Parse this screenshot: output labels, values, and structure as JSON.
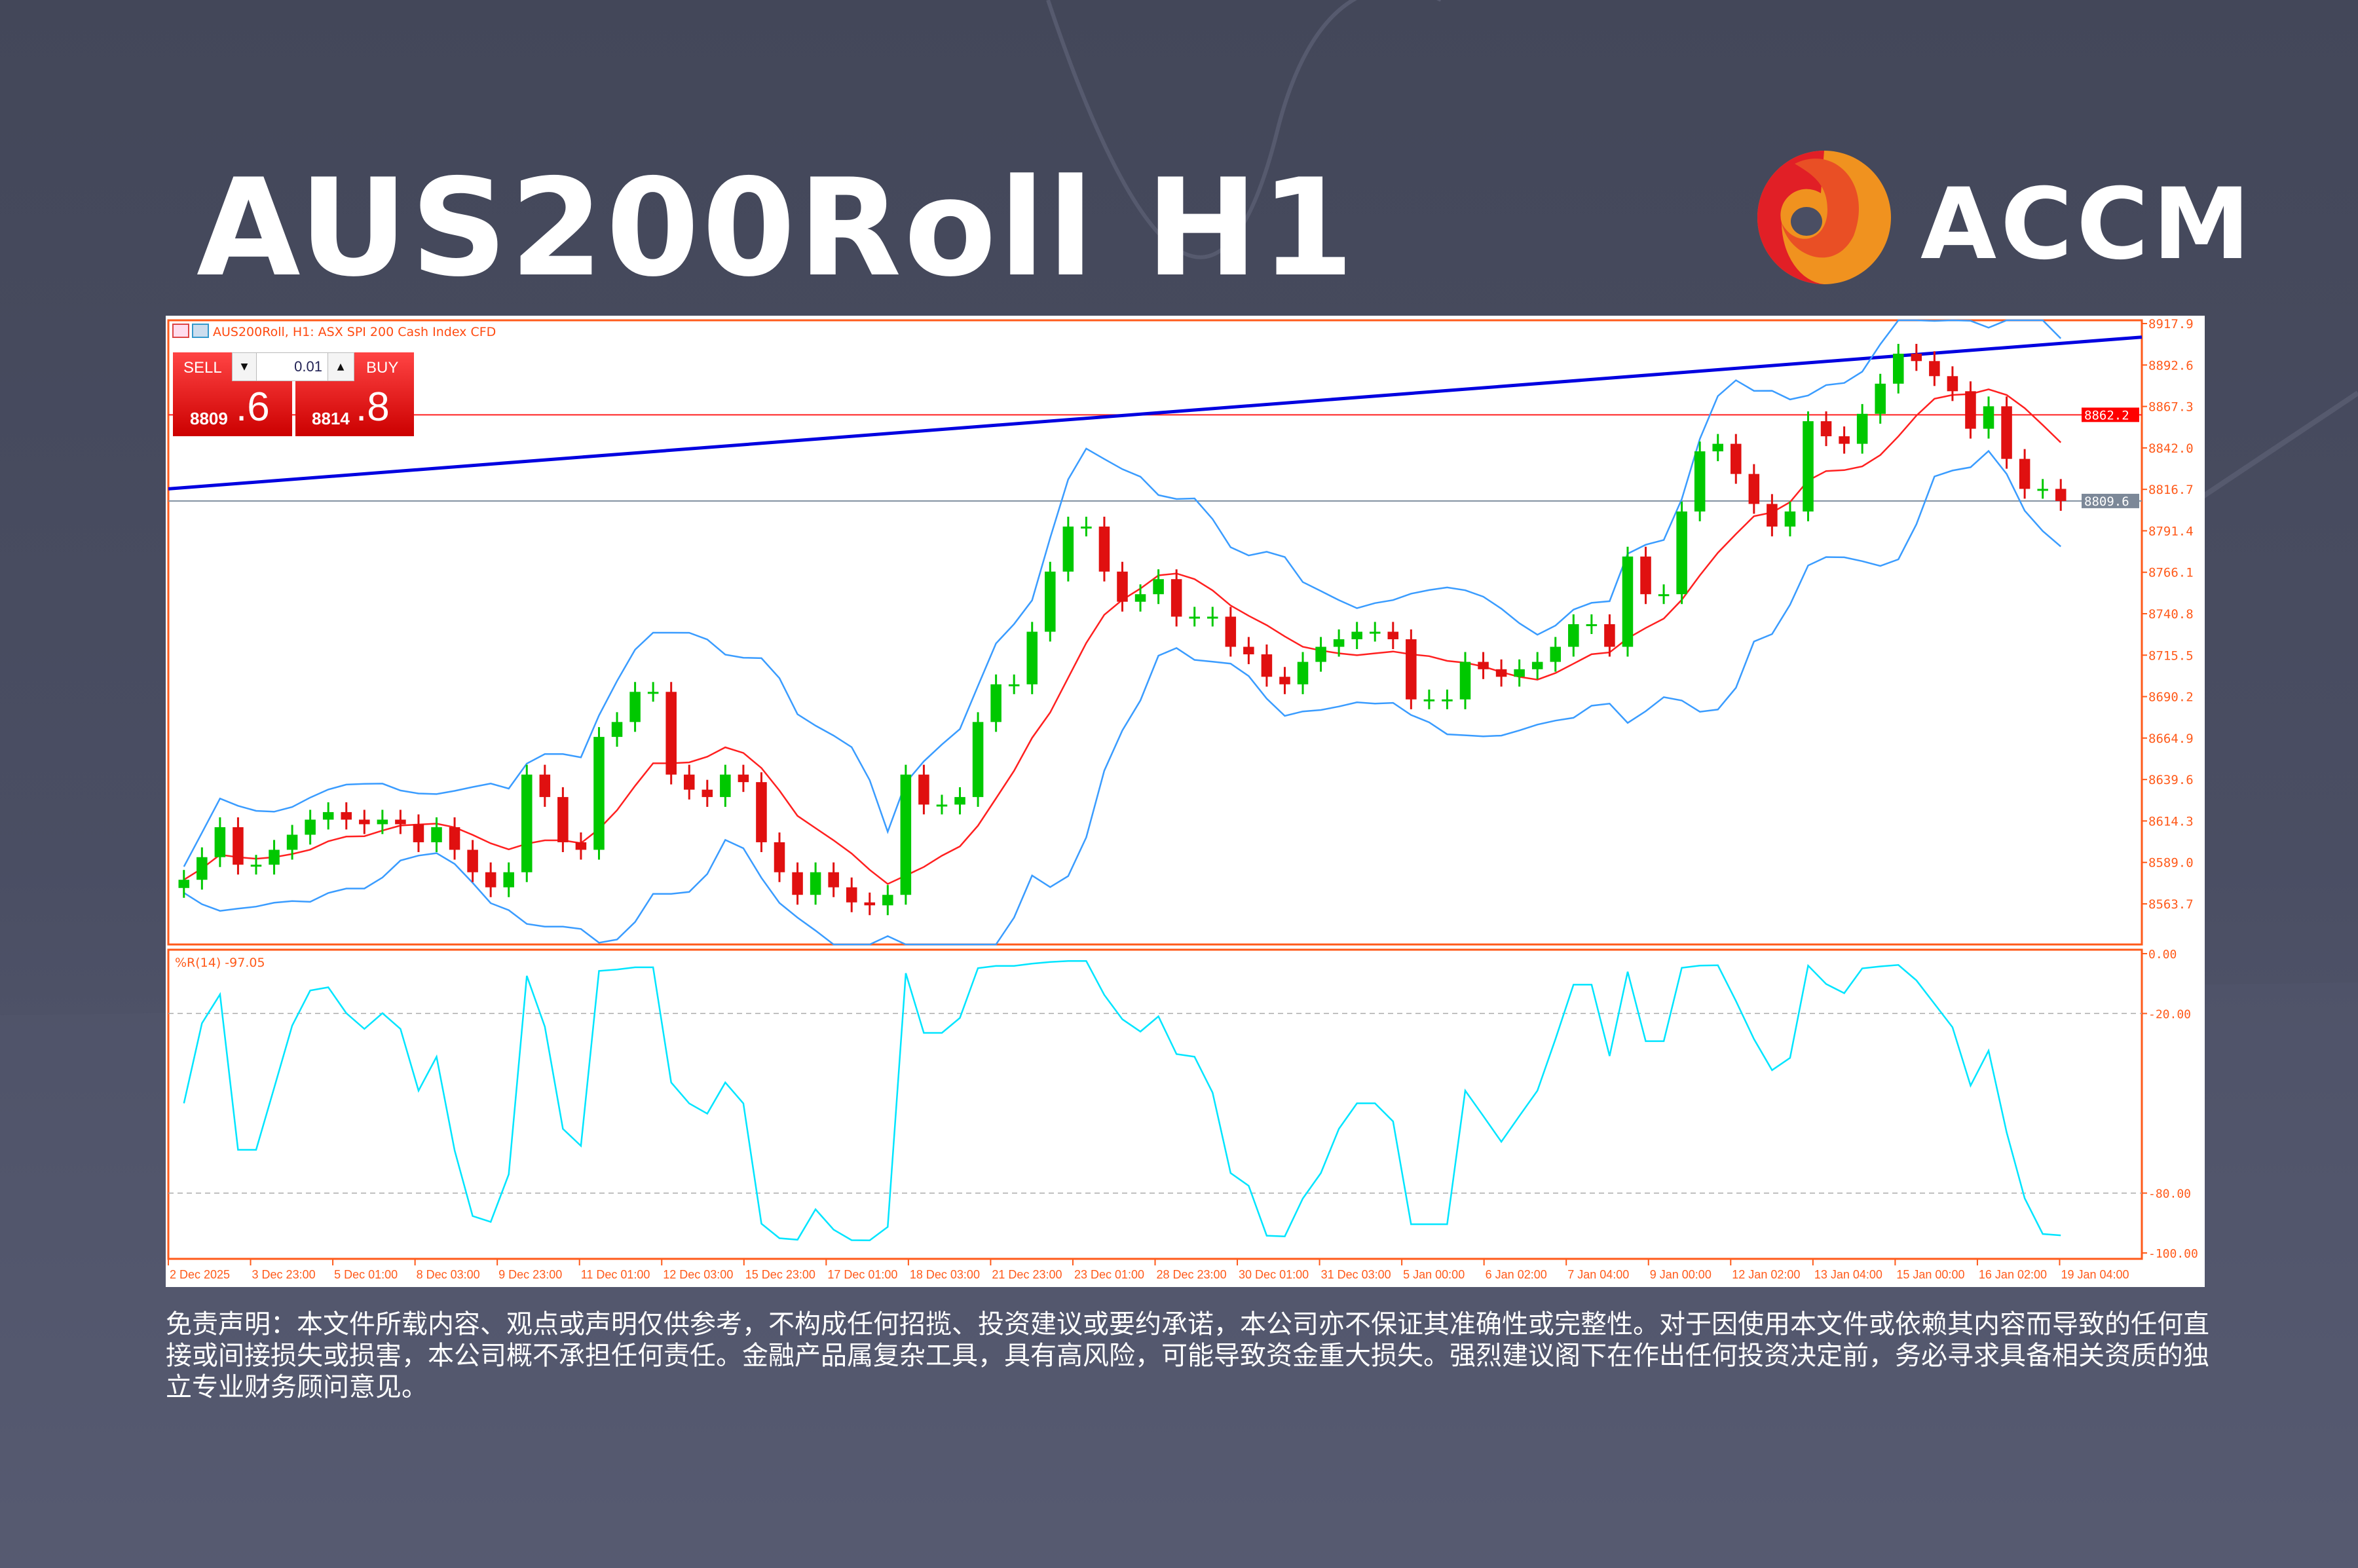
{
  "title": "AUS200Roll H1",
  "brand": {
    "name": "ACCM",
    "colors": {
      "red": "#e11f26",
      "orange": "#e94f25",
      "amber": "#f0921f"
    }
  },
  "chart_header": {
    "symbol_text": "AUS200Roll, H1:  ASX SPI 200 Cash Index CFD",
    "icons": [
      "chart-window-icon",
      "one-click-trading-icon"
    ]
  },
  "trade_panel": {
    "sell_label": "SELL",
    "buy_label": "BUY",
    "lot": "0.01",
    "sell_price_main": "8809",
    "sell_price_frac": ".6",
    "buy_price_main": "8814",
    "buy_price_frac": ".8"
  },
  "price_axis": {
    "ticks": [
      "8917.9",
      "8892.6",
      "8867.3",
      "8842.0",
      "8816.7",
      "8791.4",
      "8766.1",
      "8740.8",
      "8715.5",
      "8690.2",
      "8664.9",
      "8639.6",
      "8614.3",
      "8589.0",
      "8563.7"
    ],
    "marker_high": "8862.2",
    "marker_bid": "8809.6"
  },
  "indicator": {
    "label": "%R(14) -97.05",
    "ticks": [
      "0.00",
      "-20.00",
      "-80.00",
      "-100.00"
    ]
  },
  "time_axis": [
    "2 Dec 2025",
    "3 Dec 23:00",
    "5 Dec 01:00",
    "8 Dec 03:00",
    "9 Dec 23:00",
    "11 Dec 01:00",
    "12 Dec 03:00",
    "15 Dec 23:00",
    "17 Dec 01:00",
    "18 Dec 03:00",
    "21 Dec 23:00",
    "23 Dec 01:00",
    "28 Dec 23:00",
    "30 Dec 01:00",
    "31 Dec 03:00",
    "5 Jan 00:00",
    "6 Jan 02:00",
    "7 Jan 04:00",
    "9 Jan 00:00",
    "12 Jan 02:00",
    "13 Jan 04:00",
    "15 Jan 00:00",
    "16 Jan 02:00",
    "19 Jan 04:00"
  ],
  "chart_data": {
    "type": "candlestick",
    "title": "AUS200Roll, H1:  ASX SPI 200 Cash Index CFD",
    "ylim": [
      8545,
      8922
    ],
    "up_color": "#00c800",
    "down_color": "#e01010",
    "band_color": "#3a9cff",
    "ma_color": "#ff2020",
    "wpr_color": "#00e5ff",
    "close": [
      8578.4,
      8592.2,
      8610.5,
      8587.6,
      8587.6,
      8596.7,
      8605.9,
      8615.1,
      8619.7,
      8615.1,
      8612.3,
      8615.1,
      8612.3,
      8601.3,
      8610.5,
      8596.7,
      8583.0,
      8573.8,
      8583.0,
      8642.6,
      8628.9,
      8601.3,
      8596.7,
      8665.6,
      8674.7,
      8693.1,
      8693.1,
      8642.6,
      8633.4,
      8628.9,
      8642.6,
      8638.0,
      8601.3,
      8583.0,
      8569.2,
      8583.0,
      8573.8,
      8564.6,
      8562.8,
      8569.2,
      8642.6,
      8624.3,
      8624.3,
      8628.9,
      8674.7,
      8697.7,
      8697.7,
      8729.8,
      8766.5,
      8794.0,
      8794.0,
      8766.5,
      8748.1,
      8752.7,
      8761.9,
      8739.0,
      8739.0,
      8739.0,
      8720.6,
      8716.0,
      8702.3,
      8697.7,
      8711.4,
      8720.6,
      8725.2,
      8729.8,
      8729.8,
      8725.2,
      8688.5,
      8688.5,
      8688.5,
      8711.4,
      8706.9,
      8702.3,
      8706.9,
      8711.4,
      8720.6,
      8734.4,
      8734.4,
      8720.6,
      8775.7,
      8752.7,
      8752.7,
      8803.2,
      8839.9,
      8844.5,
      8826.1,
      8807.8,
      8794.0,
      8803.2,
      8858.3,
      8849.1,
      8844.5,
      8862.8,
      8881.2,
      8899.5,
      8895.0,
      8885.8,
      8876.6,
      8853.7,
      8867.4,
      8835.3,
      8817.0,
      8817.0,
      8809.6
    ],
    "trendline": {
      "from": 8817.0,
      "to": 8909.6,
      "color": "#0000e0"
    },
    "horizontal_levels": [
      8862.2,
      8809.6
    ],
    "indicator": {
      "name": "%R(14)",
      "last": -97.05,
      "ylim": [
        -100,
        0
      ],
      "levels": [
        -20,
        -80
      ]
    }
  },
  "disclaimer": "免责声明：本文件所载内容、观点或声明仅供参考，不构成任何招揽、投资建议或要约承诺，本公司亦不保证其准确性或完整性。对于因使用本文件或依赖其内容而导致的任何直接或间接损失或损害，本公司概不承担任何责任。金融产品属复杂工具，具有高风险，可能导致资金重大损失。强烈建议阁下在作出任何投资决定前，务必寻求具备相关资质的独立专业财务顾问意见。"
}
